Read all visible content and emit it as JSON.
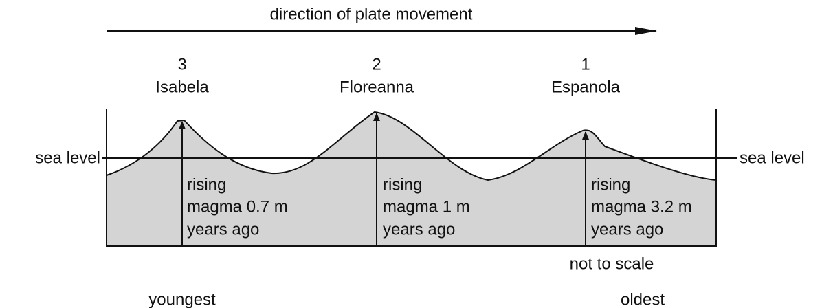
{
  "header": {
    "title": "direction of plate movement"
  },
  "islands": [
    {
      "number": "3",
      "name": "Isabela",
      "magma": [
        "rising",
        "magma 0.7 m",
        "years ago"
      ]
    },
    {
      "number": "2",
      "name": "Floreanna",
      "magma": [
        "rising",
        "magma 1 m",
        "years ago"
      ]
    },
    {
      "number": "1",
      "name": "Espanola",
      "magma": [
        "rising",
        "magma 3.2 m",
        "years ago"
      ]
    }
  ],
  "sea_level": {
    "left": "sea level",
    "right": "sea level"
  },
  "note": "not to scale",
  "age": {
    "youngest": "youngest",
    "oldest": "oldest"
  }
}
